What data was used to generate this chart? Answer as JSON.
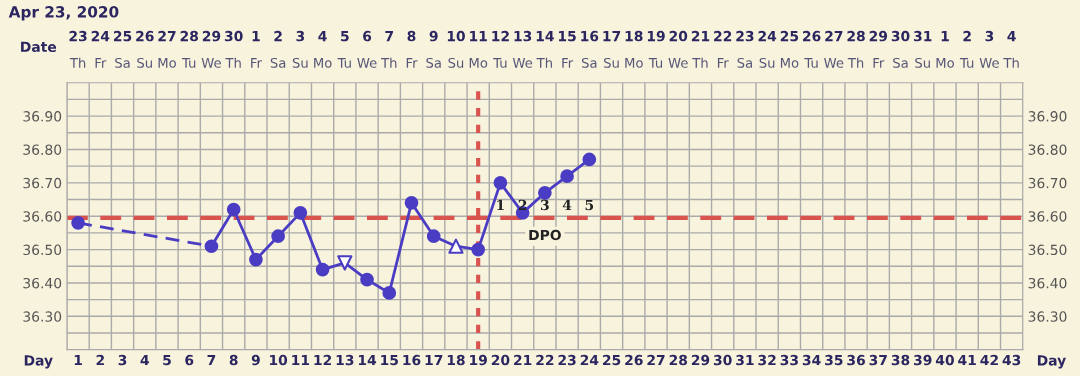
{
  "chart_data": {
    "type": "line",
    "title": "Apr 23, 2020",
    "xlabel": "Day",
    "xlim": [
      0.5,
      43.5
    ],
    "xticks": [
      1,
      2,
      3,
      4,
      5,
      6,
      7,
      8,
      9,
      10,
      11,
      12,
      13,
      14,
      15,
      16,
      17,
      18,
      19,
      20,
      21,
      22,
      23,
      24,
      25,
      26,
      27,
      28,
      29,
      30,
      31,
      32,
      33,
      34,
      35,
      36,
      37,
      38,
      39,
      40,
      41,
      42,
      43
    ],
    "ylim": [
      36.2,
      37.0
    ],
    "yticks": [
      {
        "value": 36.25,
        "label": null
      },
      {
        "value": 36.3,
        "label": "36.30"
      },
      {
        "value": 36.35,
        "label": null
      },
      {
        "value": 36.4,
        "label": "36.40"
      },
      {
        "value": 36.45,
        "label": null
      },
      {
        "value": 36.5,
        "label": "36.50"
      },
      {
        "value": 36.55,
        "label": null
      },
      {
        "value": 36.6,
        "label": "36.60"
      },
      {
        "value": 36.65,
        "label": null
      },
      {
        "value": 36.7,
        "label": "36.70"
      },
      {
        "value": 36.75,
        "label": null
      },
      {
        "value": 36.8,
        "label": "36.80"
      },
      {
        "value": 36.85,
        "label": null
      },
      {
        "value": 36.9,
        "label": "36.90"
      },
      {
        "value": 36.95,
        "label": null
      }
    ],
    "y2lim": [
      36.2,
      37.0
    ],
    "y2ticks": [
      {
        "value": 36.3,
        "label": "36.30"
      },
      {
        "value": 36.4,
        "label": "36.40"
      },
      {
        "value": 36.5,
        "label": "36.50"
      },
      {
        "value": 36.6,
        "label": "36.60"
      },
      {
        "value": 36.7,
        "label": "36.70"
      },
      {
        "value": 36.8,
        "label": "36.80"
      },
      {
        "value": 36.9,
        "label": "36.90"
      }
    ],
    "grid": true,
    "series": [
      {
        "color": "#4b3cc4",
        "line_style": "dashed",
        "marker": "none",
        "x": [
          1,
          7
        ],
        "values": [
          36.58,
          36.51
        ]
      },
      {
        "color": "#4b3cc4",
        "line_style": "solid",
        "marker": "none",
        "x": [
          7,
          8,
          9,
          10,
          11,
          12,
          13,
          14,
          15,
          16,
          17,
          18,
          19,
          20,
          21,
          22,
          23,
          24
        ],
        "values": [
          36.51,
          36.62,
          36.47,
          36.54,
          36.61,
          36.44,
          36.46,
          36.41,
          36.37,
          36.64,
          36.54,
          36.51,
          36.5,
          36.7,
          36.61,
          36.67,
          36.72,
          36.77
        ]
      },
      {
        "type": "scatter",
        "color": "#4b3cc4",
        "marker": "circle",
        "x": [
          1,
          7,
          8,
          9,
          10,
          11,
          12,
          14,
          15,
          16,
          17,
          19,
          20,
          21,
          22,
          23,
          24
        ],
        "values": [
          36.58,
          36.51,
          36.62,
          36.47,
          36.54,
          36.61,
          36.44,
          36.41,
          36.37,
          36.64,
          36.54,
          36.5,
          36.7,
          36.61,
          36.67,
          36.72,
          36.77
        ]
      },
      {
        "type": "scatter",
        "color": "#4b3cc4",
        "marker": "triangle_down",
        "x": [
          13
        ],
        "values": [
          36.46
        ]
      },
      {
        "type": "scatter",
        "color": "#4b3cc4",
        "marker": "triangle",
        "x": [
          18
        ],
        "values": [
          36.51
        ]
      }
    ],
    "ref_lines": [
      {
        "axis": "y",
        "value": 36.595,
        "color": "#d9534f",
        "line_style": "dashed"
      },
      {
        "axis": "x",
        "value": 19,
        "color": "#d9534f",
        "line_style": "dotted"
      }
    ],
    "annotations": [
      "Date",
      "23\nTh",
      "24\nFr",
      "25\nSa",
      "26\nSu",
      "27\nMo",
      "28\nTu",
      "29\nWe",
      "30\nTh",
      "1\nFr",
      "2\nSa",
      "3\nSu",
      "4\nMo",
      "5\nTu",
      "6\nWe",
      "7\nTh",
      "8\nFr",
      "9\nSa",
      "10\nSu",
      "11\nMo",
      "12\nTu",
      "13\nWe",
      "14\nTh",
      "15\nFr",
      "16\nSa",
      "17\nSu",
      "18\nMo",
      "19\nTu",
      "20\nWe",
      "21\nTh",
      "22\nFr",
      "23\nSa",
      "24\nSu",
      "25\nMo",
      "26\nTu",
      "27\nWe",
      "28\nTh",
      "29\nFr",
      "30\nSa",
      "31\nSu",
      "1\nMo",
      "2\nTu",
      "3\nWe",
      "4\nTh",
      "1",
      "2",
      "3",
      "4",
      "5",
      "DPO"
    ]
  }
}
